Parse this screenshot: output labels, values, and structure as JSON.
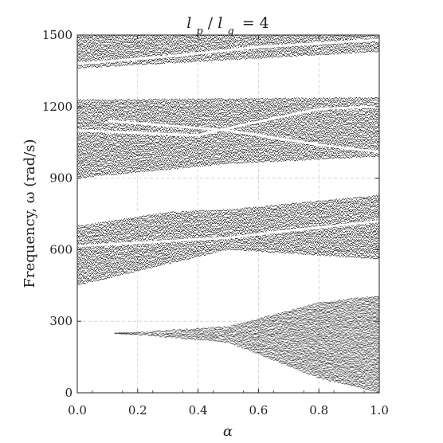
{
  "chart_data": {
    "type": "scatter",
    "title": "l_p/l_q = 4",
    "title_parts": {
      "lhs1": "l",
      "sub1": "p",
      "slash": "/",
      "lhs2": "l",
      "sub2": "q",
      "rhs": "= 4"
    },
    "xlabel": "α",
    "ylabel": "Frequency, ω (rad/s)",
    "xlim": [
      0.0,
      1.0
    ],
    "ylim": [
      0,
      1500
    ],
    "x_ticks": [
      "0.0",
      "0.2",
      "0.4",
      "0.6",
      "0.8",
      "1.0"
    ],
    "y_ticks": [
      "0",
      "300",
      "600",
      "900",
      "1200",
      "1500"
    ],
    "grid": true,
    "point_color": "#222222",
    "series": [
      {
        "bands": [
          {
            "x_start": 0.0,
            "lower": [
              [
                0.0,
                1360
              ],
              [
                1.0,
                1430
              ]
            ],
            "upper": [
              [
                0.0,
                1500
              ],
              [
                1.0,
                1500
              ]
            ]
          },
          {
            "x_start": 0.0,
            "lower": [
              [
                0.0,
                900
              ],
              [
                0.5,
                960
              ],
              [
                1.0,
                990
              ]
            ],
            "upper": [
              [
                0.0,
                1230
              ],
              [
                1.0,
                1240
              ]
            ]
          },
          {
            "x_start": 0.0,
            "lower": [
              [
                0.0,
                450
              ],
              [
                0.5,
                600
              ],
              [
                1.0,
                560
              ]
            ],
            "upper": [
              [
                0.0,
                700
              ],
              [
                0.3,
                760
              ],
              [
                0.5,
                770
              ],
              [
                1.0,
                830
              ]
            ]
          },
          {
            "x_start": 0.12,
            "lower": [
              [
                0.12,
                250
              ],
              [
                0.5,
                210
              ],
              [
                0.8,
                60
              ],
              [
                1.0,
                0
              ]
            ],
            "upper": [
              [
                0.12,
                250
              ],
              [
                0.5,
                280
              ],
              [
                0.8,
                380
              ],
              [
                1.0,
                410
              ]
            ]
          }
        ],
        "white_lines": [
          {
            "points": [
              [
                0.05,
                720
              ],
              [
                0.4,
                780
              ],
              [
                0.6,
                790
              ],
              [
                1.0,
                835
              ]
            ]
          },
          {
            "points": [
              [
                0.0,
                615
              ],
              [
                0.35,
                640
              ],
              [
                0.5,
                650
              ],
              [
                0.7,
                680
              ],
              [
                1.0,
                720
              ]
            ]
          },
          {
            "points": [
              [
                0.0,
                1100
              ],
              [
                0.4,
                1080
              ],
              [
                0.5,
                1110
              ],
              [
                0.8,
                1190
              ],
              [
                1.0,
                1200
              ]
            ]
          },
          {
            "points": [
              [
                0.1,
                1140
              ],
              [
                0.5,
                1100
              ],
              [
                0.8,
                1040
              ],
              [
                1.0,
                1010
              ]
            ]
          },
          {
            "points": [
              [
                0.0,
                1380
              ],
              [
                0.3,
                1410
              ],
              [
                0.6,
                1450
              ],
              [
                1.0,
                1480
              ]
            ]
          }
        ]
      }
    ]
  }
}
